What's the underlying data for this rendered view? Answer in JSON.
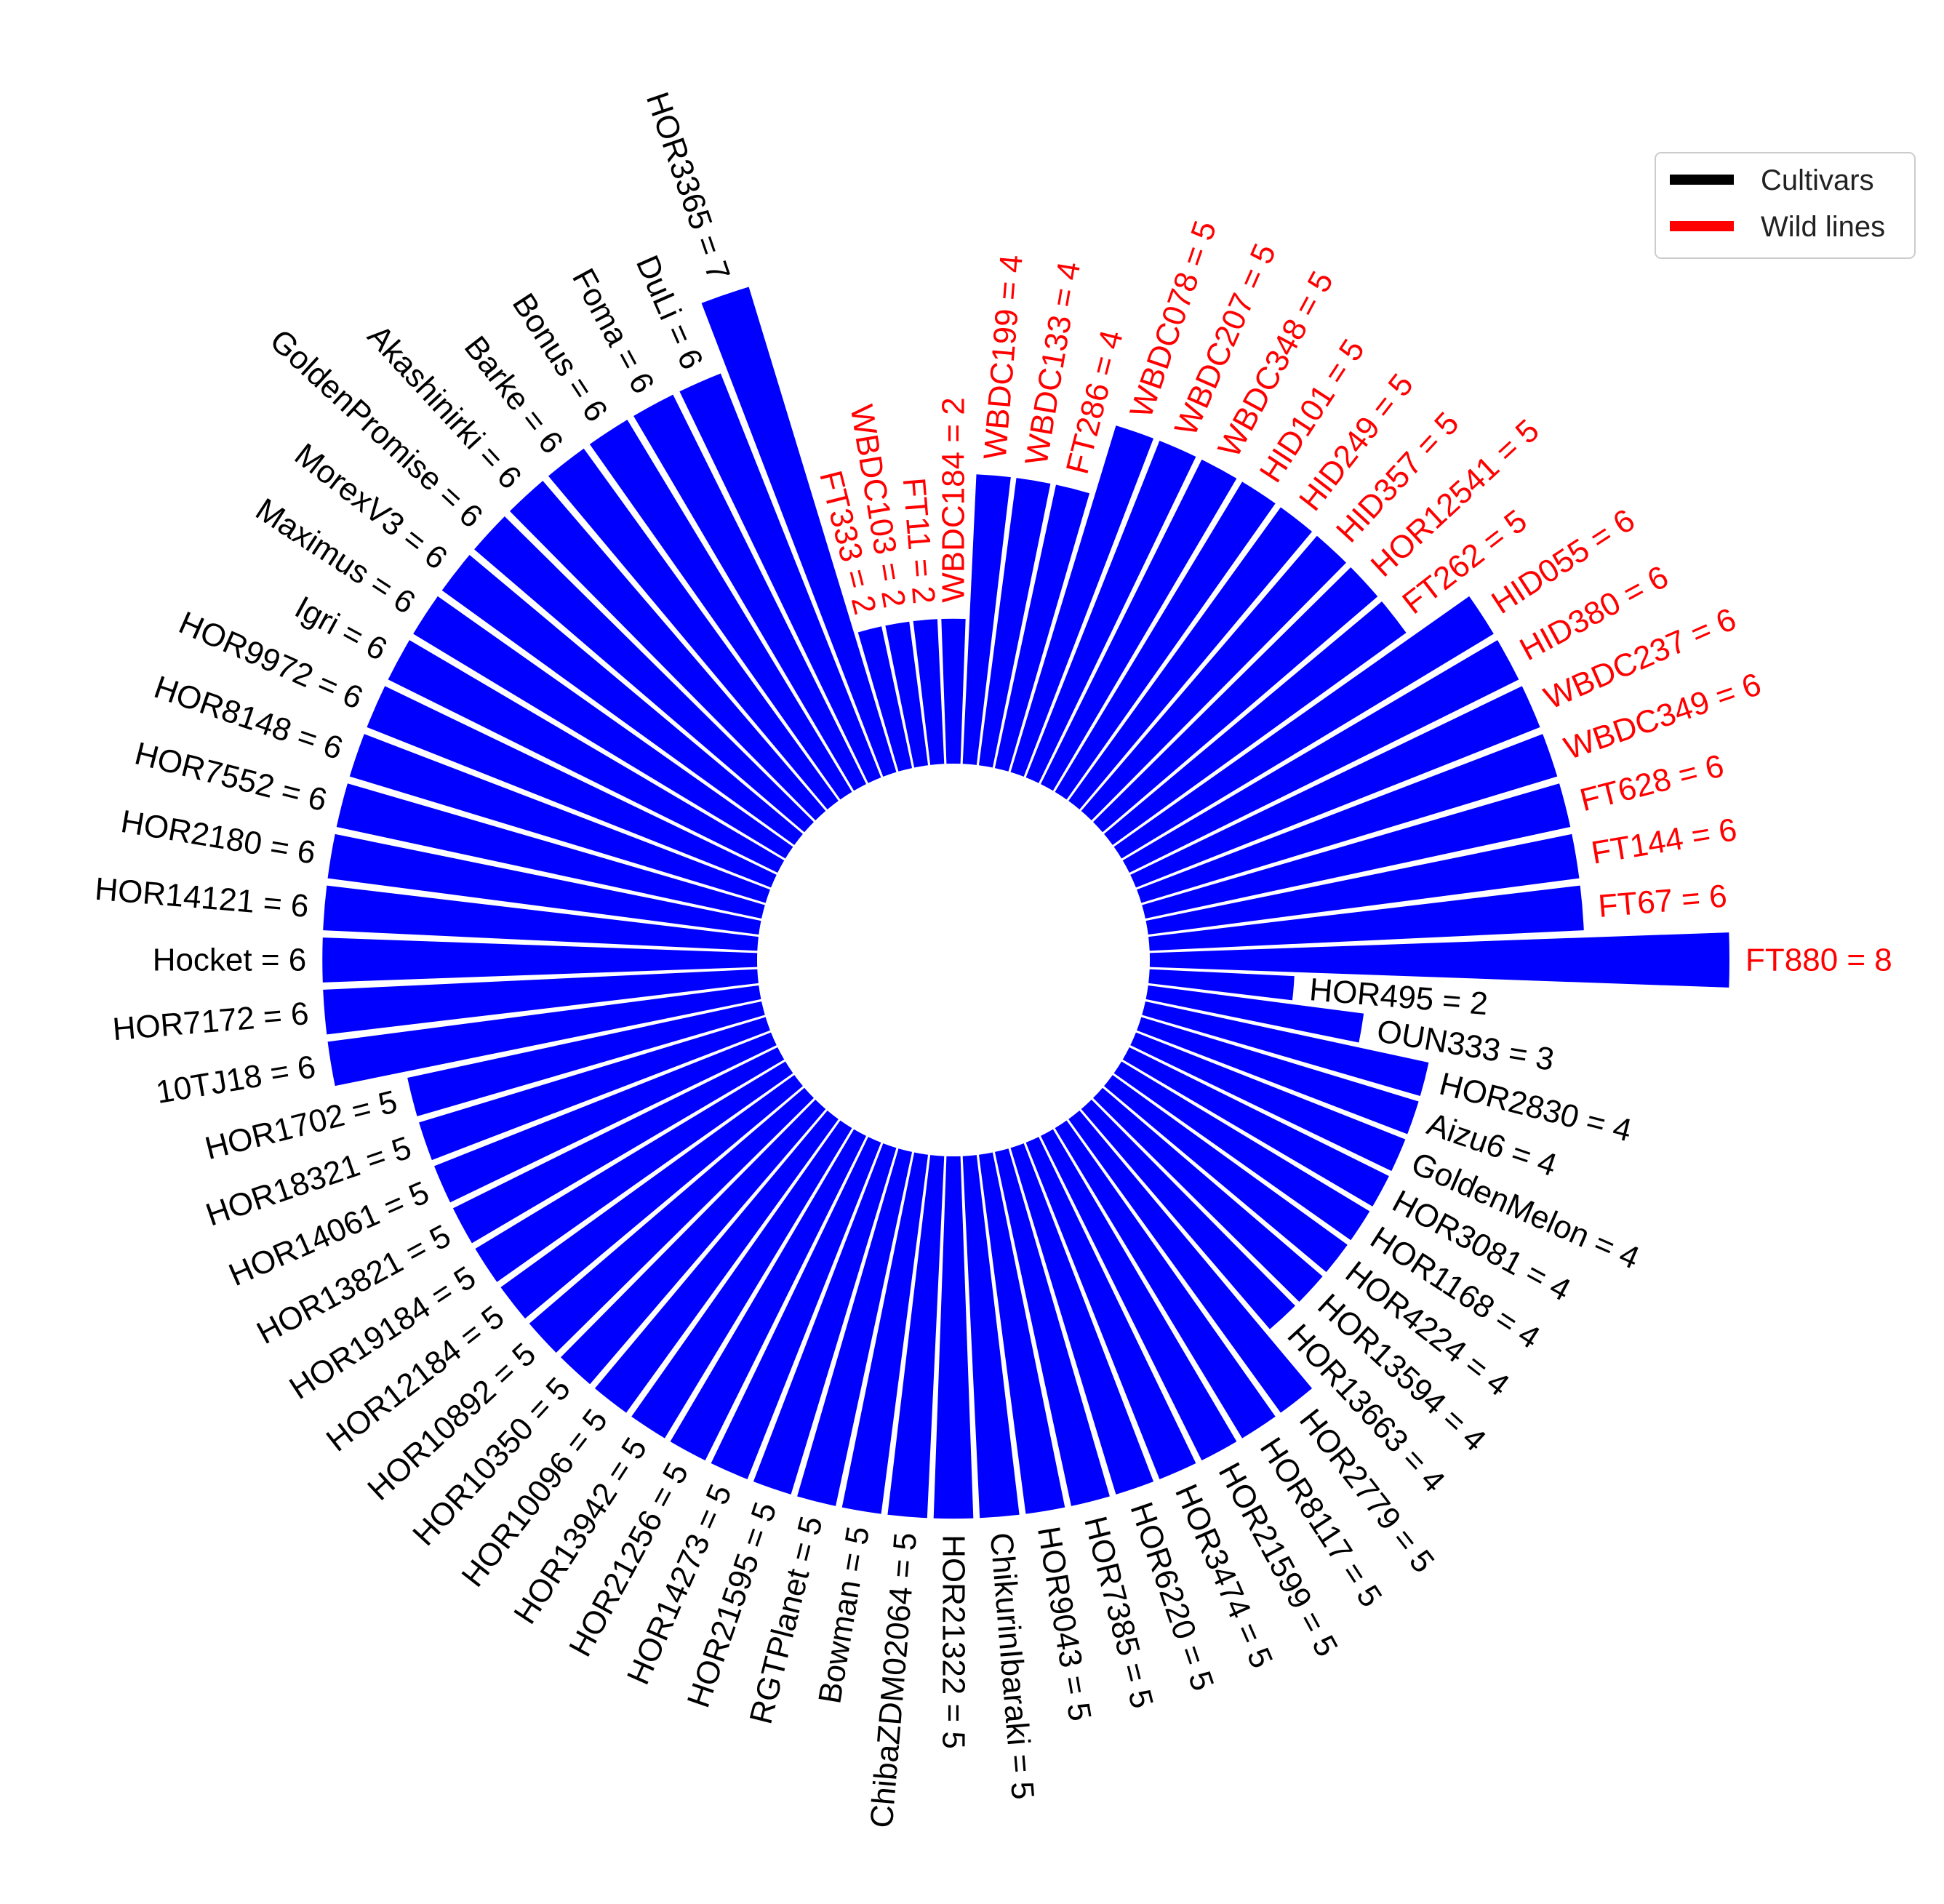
{
  "chart_data": {
    "type": "bar",
    "polar": true,
    "bar_color": "#0000ff",
    "label_format": "{name} = {value}",
    "legend": {
      "placement": "top-right",
      "entries": [
        {
          "label": "Cultivars",
          "color": "#000000"
        },
        {
          "label": "Wild lines",
          "color": "#ff0000"
        }
      ]
    },
    "ylim": [
      0,
      8
    ],
    "categories": [
      {
        "name": "FT880",
        "value": 8,
        "group": "Wild lines"
      },
      {
        "name": "FT67",
        "value": 6,
        "group": "Wild lines"
      },
      {
        "name": "FT144",
        "value": 6,
        "group": "Wild lines"
      },
      {
        "name": "FT628",
        "value": 6,
        "group": "Wild lines"
      },
      {
        "name": "WBDC349",
        "value": 6,
        "group": "Wild lines"
      },
      {
        "name": "WBDC237",
        "value": 6,
        "group": "Wild lines"
      },
      {
        "name": "HID380",
        "value": 6,
        "group": "Wild lines"
      },
      {
        "name": "HID055",
        "value": 6,
        "group": "Wild lines"
      },
      {
        "name": "FT262",
        "value": 5,
        "group": "Wild lines"
      },
      {
        "name": "HOR12541",
        "value": 5,
        "group": "Wild lines"
      },
      {
        "name": "HID357",
        "value": 5,
        "group": "Wild lines"
      },
      {
        "name": "HID249",
        "value": 5,
        "group": "Wild lines"
      },
      {
        "name": "HID101",
        "value": 5,
        "group": "Wild lines"
      },
      {
        "name": "WBDC348",
        "value": 5,
        "group": "Wild lines"
      },
      {
        "name": "WBDC207",
        "value": 5,
        "group": "Wild lines"
      },
      {
        "name": "WBDC078",
        "value": 5,
        "group": "Wild lines"
      },
      {
        "name": "FT286",
        "value": 4,
        "group": "Wild lines"
      },
      {
        "name": "WBDC133",
        "value": 4,
        "group": "Wild lines"
      },
      {
        "name": "WBDC199",
        "value": 4,
        "group": "Wild lines"
      },
      {
        "name": "WBDC184",
        "value": 2,
        "group": "Wild lines"
      },
      {
        "name": "FT11",
        "value": 2,
        "group": "Wild lines"
      },
      {
        "name": "WBDC103",
        "value": 2,
        "group": "Wild lines"
      },
      {
        "name": "FT333",
        "value": 2,
        "group": "Wild lines"
      },
      {
        "name": "HOR3365",
        "value": 7,
        "group": "Cultivars"
      },
      {
        "name": "DuLi",
        "value": 6,
        "group": "Cultivars"
      },
      {
        "name": "Foma",
        "value": 6,
        "group": "Cultivars"
      },
      {
        "name": "Bonus",
        "value": 6,
        "group": "Cultivars"
      },
      {
        "name": "Barke",
        "value": 6,
        "group": "Cultivars"
      },
      {
        "name": "Akashinirki",
        "value": 6,
        "group": "Cultivars"
      },
      {
        "name": "GoldenPromise",
        "value": 6,
        "group": "Cultivars"
      },
      {
        "name": "MorexV3",
        "value": 6,
        "group": "Cultivars"
      },
      {
        "name": "Maximus",
        "value": 6,
        "group": "Cultivars"
      },
      {
        "name": "Igri",
        "value": 6,
        "group": "Cultivars"
      },
      {
        "name": "HOR9972",
        "value": 6,
        "group": "Cultivars"
      },
      {
        "name": "HOR8148",
        "value": 6,
        "group": "Cultivars"
      },
      {
        "name": "HOR7552",
        "value": 6,
        "group": "Cultivars"
      },
      {
        "name": "HOR2180",
        "value": 6,
        "group": "Cultivars"
      },
      {
        "name": "HOR14121",
        "value": 6,
        "group": "Cultivars"
      },
      {
        "name": "Hocket",
        "value": 6,
        "group": "Cultivars"
      },
      {
        "name": "HOR7172",
        "value": 6,
        "group": "Cultivars"
      },
      {
        "name": "10TJ18",
        "value": 6,
        "group": "Cultivars"
      },
      {
        "name": "HOR1702",
        "value": 5,
        "group": "Cultivars"
      },
      {
        "name": "HOR18321",
        "value": 5,
        "group": "Cultivars"
      },
      {
        "name": "HOR14061",
        "value": 5,
        "group": "Cultivars"
      },
      {
        "name": "HOR13821",
        "value": 5,
        "group": "Cultivars"
      },
      {
        "name": "HOR19184",
        "value": 5,
        "group": "Cultivars"
      },
      {
        "name": "HOR12184",
        "value": 5,
        "group": "Cultivars"
      },
      {
        "name": "HOR10892",
        "value": 5,
        "group": "Cultivars"
      },
      {
        "name": "HOR10350",
        "value": 5,
        "group": "Cultivars"
      },
      {
        "name": "HOR10096",
        "value": 5,
        "group": "Cultivars"
      },
      {
        "name": "HOR13942",
        "value": 5,
        "group": "Cultivars"
      },
      {
        "name": "HOR21256",
        "value": 5,
        "group": "Cultivars"
      },
      {
        "name": "HOR14273",
        "value": 5,
        "group": "Cultivars"
      },
      {
        "name": "HOR21595",
        "value": 5,
        "group": "Cultivars"
      },
      {
        "name": "RGTPlanet",
        "value": 5,
        "group": "Cultivars"
      },
      {
        "name": "Bowman",
        "value": 5,
        "group": "Cultivars"
      },
      {
        "name": "ChibaZDM02064",
        "value": 5,
        "group": "Cultivars"
      },
      {
        "name": "HOR21322",
        "value": 5,
        "group": "Cultivars"
      },
      {
        "name": "ChikurinIbaraki",
        "value": 5,
        "group": "Cultivars"
      },
      {
        "name": "HOR9043",
        "value": 5,
        "group": "Cultivars"
      },
      {
        "name": "HOR7385",
        "value": 5,
        "group": "Cultivars"
      },
      {
        "name": "HOR6220",
        "value": 5,
        "group": "Cultivars"
      },
      {
        "name": "HOR3474",
        "value": 5,
        "group": "Cultivars"
      },
      {
        "name": "HOR21599",
        "value": 5,
        "group": "Cultivars"
      },
      {
        "name": "HOR8117",
        "value": 5,
        "group": "Cultivars"
      },
      {
        "name": "HOR2779",
        "value": 5,
        "group": "Cultivars"
      },
      {
        "name": "HOR13663",
        "value": 4,
        "group": "Cultivars"
      },
      {
        "name": "HOR13594",
        "value": 4,
        "group": "Cultivars"
      },
      {
        "name": "HOR4224",
        "value": 4,
        "group": "Cultivars"
      },
      {
        "name": "HOR1168",
        "value": 4,
        "group": "Cultivars"
      },
      {
        "name": "HOR3081",
        "value": 4,
        "group": "Cultivars"
      },
      {
        "name": "GoldenMelon",
        "value": 4,
        "group": "Cultivars"
      },
      {
        "name": "Aizu6",
        "value": 4,
        "group": "Cultivars"
      },
      {
        "name": "HOR2830",
        "value": 4,
        "group": "Cultivars"
      },
      {
        "name": "OUN333",
        "value": 3,
        "group": "Cultivars"
      },
      {
        "name": "HOR495",
        "value": 2,
        "group": "Cultivars"
      }
    ]
  }
}
